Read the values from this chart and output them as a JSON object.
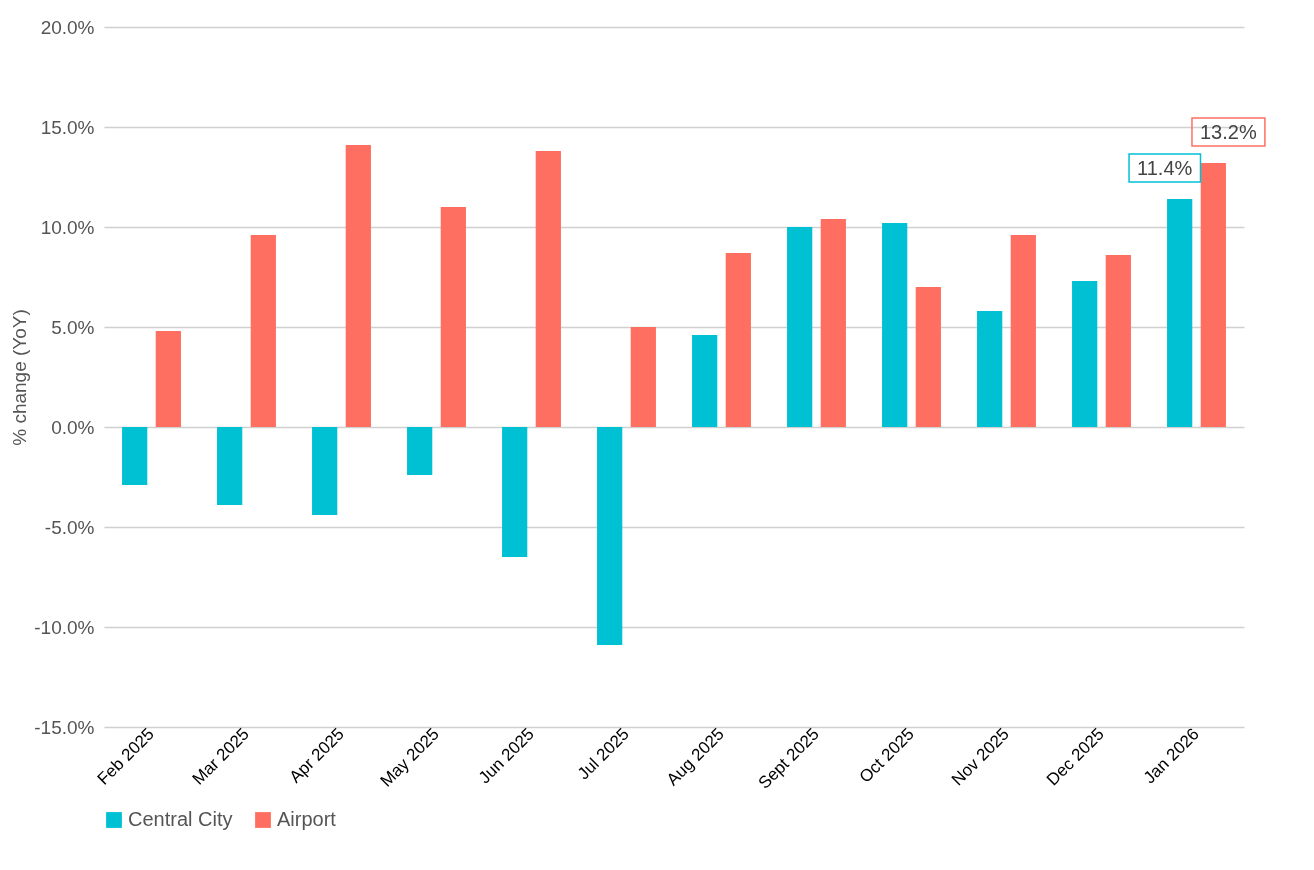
{
  "chart_data": {
    "type": "bar",
    "ylabel": "% change (YoY)",
    "categories": [
      "Feb 2025",
      "Mar 2025",
      "Apr 2025",
      "May 2025",
      "Jun 2025",
      "Jul 2025",
      "Aug 2025",
      "Sept 2025",
      "Oct 2025",
      "Nov 2025",
      "Dec 2025",
      "Jan 2026"
    ],
    "series": [
      {
        "name": "Central City",
        "color": "#00c0d4",
        "values": [
          -2.9,
          -3.9,
          -4.4,
          -2.4,
          -6.5,
          -10.9,
          4.6,
          10.0,
          10.2,
          5.8,
          7.3,
          11.4
        ],
        "value_labels": [
          null,
          null,
          null,
          null,
          null,
          null,
          null,
          null,
          null,
          null,
          null,
          "11.4%"
        ]
      },
      {
        "name": "Airport",
        "color": "#ff6f61",
        "values": [
          4.8,
          9.6,
          14.1,
          11.0,
          13.8,
          5.0,
          8.7,
          10.4,
          7.0,
          9.6,
          8.6,
          13.2
        ],
        "value_labels": [
          null,
          null,
          null,
          null,
          null,
          null,
          null,
          null,
          null,
          null,
          null,
          "13.2%"
        ]
      }
    ],
    "ylim": [
      -15,
      20
    ],
    "yticks": [
      {
        "value": -15,
        "label": "-15.0%"
      },
      {
        "value": -10,
        "label": "-10.0%"
      },
      {
        "value": -5,
        "label": "-5.0%"
      },
      {
        "value": 0,
        "label": "0.0%"
      },
      {
        "value": 5,
        "label": "5.0%"
      },
      {
        "value": 10,
        "label": "10.0%"
      },
      {
        "value": 15,
        "label": "15.0%"
      },
      {
        "value": 20,
        "label": "20.0%"
      }
    ],
    "grid": "y",
    "legend": "bottom"
  }
}
